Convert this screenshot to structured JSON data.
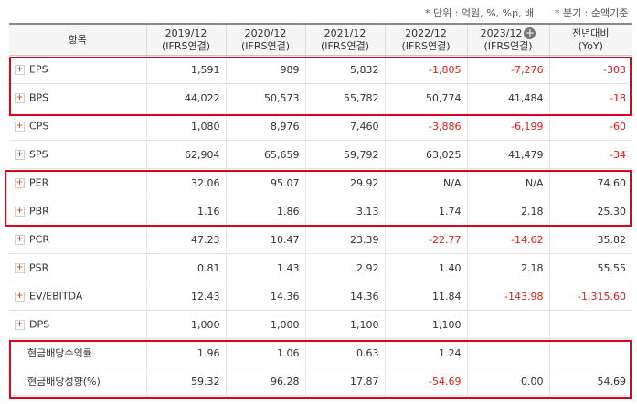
{
  "notes": {
    "unit": "* 단위 : 억원, %, %p, 배",
    "period": "* 분기 : 순액기준"
  },
  "header": {
    "item": "항목",
    "columns": [
      {
        "period": "2019/12",
        "basis": "(IFRS연결)"
      },
      {
        "period": "2020/12",
        "basis": "(IFRS연결)"
      },
      {
        "period": "2021/12",
        "basis": "(IFRS연결)"
      },
      {
        "period": "2022/12",
        "basis": "(IFRS연결)"
      },
      {
        "period": "2023/12",
        "basis": "(IFRS연결)"
      },
      {
        "period": "전년대비",
        "basis": "(YoY)"
      }
    ]
  },
  "rows": [
    {
      "label": "EPS",
      "values": [
        "1,591",
        "989",
        "5,832",
        "-1,805",
        "-7,276",
        "-303"
      ]
    },
    {
      "label": "BPS",
      "values": [
        "44,022",
        "50,573",
        "55,782",
        "50,774",
        "41,484",
        "-18"
      ]
    },
    {
      "label": "CPS",
      "values": [
        "1,080",
        "8,976",
        "7,460",
        "-3,886",
        "-6,199",
        "-60"
      ]
    },
    {
      "label": "SPS",
      "values": [
        "62,904",
        "65,659",
        "59,792",
        "63,025",
        "41,479",
        "-34"
      ]
    },
    {
      "label": "PER",
      "values": [
        "32.06",
        "95.07",
        "29.92",
        "N/A",
        "N/A",
        "74.60"
      ]
    },
    {
      "label": "PBR",
      "values": [
        "1.16",
        "1.86",
        "3.13",
        "1.74",
        "2.18",
        "25.30"
      ]
    },
    {
      "label": "PCR",
      "values": [
        "47.23",
        "10.47",
        "23.39",
        "-22.77",
        "-14.62",
        "35.82"
      ]
    },
    {
      "label": "PSR",
      "values": [
        "0.81",
        "1.43",
        "2.92",
        "1.40",
        "2.18",
        "55.55"
      ]
    },
    {
      "label": "EV/EBITDA",
      "values": [
        "12.43",
        "14.36",
        "14.36",
        "11.84",
        "-143.98",
        "-1,315.60"
      ]
    },
    {
      "label": "DPS",
      "values": [
        "1,000",
        "1,000",
        "1,100",
        "1,100",
        "",
        ""
      ]
    },
    {
      "label": "현금배당수익률",
      "values": [
        "1.96",
        "1.06",
        "0.63",
        "1.24",
        "",
        ""
      ]
    },
    {
      "label": "현금배당성향(%)",
      "values": [
        "59.32",
        "96.28",
        "17.87",
        "-54.69",
        "0.00",
        "54.69"
      ]
    }
  ],
  "colors": {
    "negative": "#e0201b",
    "highlight": "#e0001b"
  },
  "icons": {
    "expand": "plus-icon",
    "add_column": "circle-plus-icon"
  }
}
